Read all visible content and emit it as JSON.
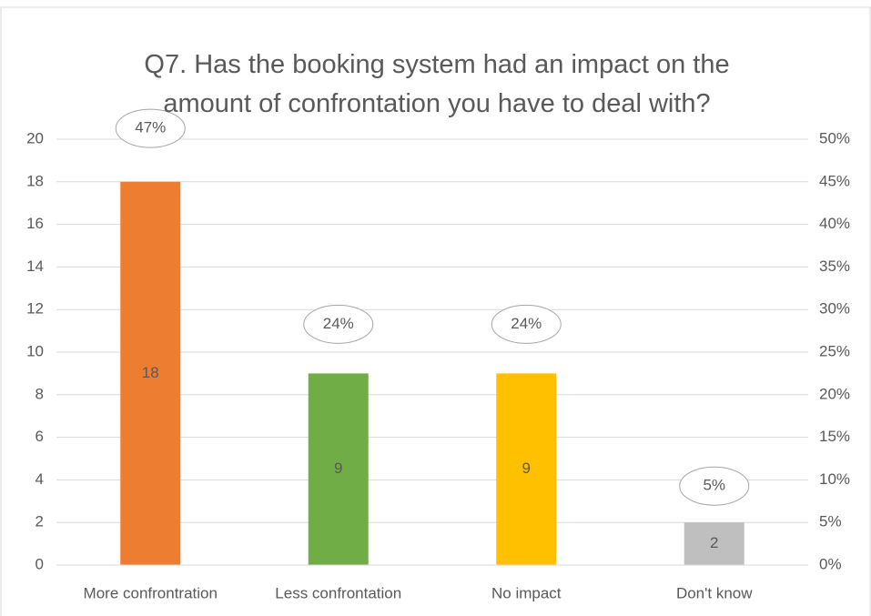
{
  "chart_data": {
    "type": "bar",
    "title": "Q7. Has the booking system had an impact on the amount of confrontation you have to deal with?",
    "categories": [
      "More confrontration",
      "Less confrontation",
      "No impact",
      "Don't know"
    ],
    "series": [
      {
        "values": [
          18,
          9,
          9,
          2
        ],
        "colors": [
          "#ed7d31",
          "#70ad47",
          "#ffc000",
          "#bfbfbf"
        ]
      },
      {
        "axis": "y2",
        "values": [
          47,
          24,
          24,
          5
        ],
        "value_labels": [
          "47%",
          "24%",
          "24%",
          "5%"
        ]
      }
    ],
    "ylim": [
      0,
      20
    ],
    "yticks": [
      0,
      2,
      4,
      6,
      8,
      10,
      12,
      14,
      16,
      18,
      20
    ],
    "y2lim": [
      0,
      50
    ],
    "y2ticks": [
      {
        "value": 0,
        "label": "0%"
      },
      {
        "value": 5,
        "label": "5%"
      },
      {
        "value": 10,
        "label": "10%"
      },
      {
        "value": 15,
        "label": "15%"
      },
      {
        "value": 20,
        "label": "20%"
      },
      {
        "value": 25,
        "label": "25%"
      },
      {
        "value": 30,
        "label": "30%"
      },
      {
        "value": 35,
        "label": "35%"
      },
      {
        "value": 40,
        "label": "40%"
      },
      {
        "value": 45,
        "label": "45%"
      },
      {
        "value": 50,
        "label": "50%"
      }
    ],
    "grid": true
  }
}
